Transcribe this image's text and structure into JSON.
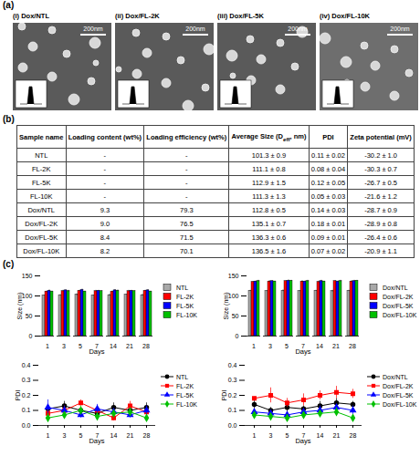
{
  "panel_a": {
    "label": "(a)",
    "images": [
      {
        "label": "(i) Dox/NTL",
        "scale_bar": "200nm"
      },
      {
        "label": "(ii) Dox/FL-2K",
        "scale_bar": "200nm"
      },
      {
        "label": "(iii) Dox/FL-5K",
        "scale_bar": "200nm"
      },
      {
        "label": "(iv) Dox/FL-10K",
        "scale_bar": "200nm"
      }
    ]
  },
  "panel_b": {
    "label": "(b)",
    "table": {
      "header": [
        "Sample name",
        "Loading content (wt%)",
        "Loading efficiency (wt%)",
        {
          "text": "Average Size (D",
          "subscript": "eff",
          "tail": ", nm)"
        },
        "PDI",
        "Zeta potential (mV)"
      ],
      "rows": [
        [
          "NTL",
          "-",
          "-",
          "101.3 ± 0.9",
          "0.11 ± 0.02",
          "-30.2 ± 1.0"
        ],
        [
          "FL-2K",
          "-",
          "-",
          "111.1 ± 0.8",
          "0.08 ± 0.04",
          "-30.3 ± 0.7"
        ],
        [
          "FL-5K",
          "-",
          "-",
          "112.9 ± 1.5",
          "0.12 ± 0.05",
          "-26.7 ± 0.5"
        ],
        [
          "FL-10K",
          "-",
          "-",
          "111.3 ± 1.3",
          "0.05 ± 0.03",
          "-21.6 ± 1.2"
        ],
        [
          "Dox/NTL",
          "9.3",
          "79.3",
          "112.8 ± 0.5",
          "0.14 ± 0.03",
          "-28.7 ± 0.9"
        ],
        [
          "Dox/FL-2K",
          "9.0",
          "76.5",
          "135.1 ± 0.7",
          "0.18 ± 0.01",
          "-28.9 ± 0.8"
        ],
        [
          "Dox/FL-5K",
          "8.4",
          "71.5",
          "136.3 ± 0.6",
          "0.09 ± 0.01",
          "-26.4 ± 0.6"
        ],
        [
          "Dox/FL-10K",
          "8.2",
          "70.1",
          "136.5 ± 1.6",
          "0.07 ± 0.02",
          "-20.9 ± 1.1"
        ]
      ]
    }
  },
  "panel_c": {
    "label": "(c)"
  },
  "chart_data": [
    {
      "type": "bar",
      "xlabel": "Days",
      "ylabel": "Size (nm)",
      "categories": [
        "1",
        "3",
        "5",
        "7",
        "14",
        "21",
        "28"
      ],
      "series": [
        {
          "name": "NTL",
          "color": "#a9a9a9",
          "values": [
            101,
            102,
            103,
            101,
            102,
            103,
            102
          ],
          "errors": [
            1,
            1,
            2,
            1,
            2,
            1,
            2
          ]
        },
        {
          "name": "FL-2K",
          "color": "#ff0000",
          "values": [
            111,
            112,
            113,
            112,
            111,
            112,
            113
          ],
          "errors": [
            1,
            2,
            1,
            2,
            1,
            2,
            1
          ]
        },
        {
          "name": "FL-5K",
          "color": "#0000ff",
          "values": [
            113,
            114,
            115,
            113,
            114,
            113,
            114
          ],
          "errors": [
            2,
            1,
            2,
            1,
            2,
            1,
            2
          ]
        },
        {
          "name": "FL-10K",
          "color": "#00c000",
          "values": [
            111,
            112,
            111,
            112,
            113,
            112,
            111
          ],
          "errors": [
            1,
            2,
            1,
            1,
            2,
            1,
            1
          ]
        }
      ],
      "ylim": [
        0,
        150
      ],
      "yticks": [
        0,
        50,
        100,
        150
      ],
      "legend": "right",
      "grid": false
    },
    {
      "type": "bar",
      "xlabel": "Days",
      "ylabel": "Size (nm)",
      "categories": [
        "1",
        "3",
        "5",
        "7",
        "14",
        "21",
        "28"
      ],
      "series": [
        {
          "name": "Dox/NTL",
          "color": "#a9a9a9",
          "values": [
            113,
            112,
            113,
            112,
            113,
            112,
            113
          ],
          "errors": [
            1,
            1,
            2,
            1,
            1,
            2,
            1
          ]
        },
        {
          "name": "Dox/FL-2K",
          "color": "#ff0000",
          "values": [
            135,
            136,
            137,
            136,
            135,
            137,
            136
          ],
          "errors": [
            1,
            2,
            1,
            2,
            2,
            1,
            2
          ]
        },
        {
          "name": "Dox/FL-5K",
          "color": "#0000ff",
          "values": [
            136,
            137,
            138,
            136,
            137,
            136,
            137
          ],
          "errors": [
            1,
            1,
            2,
            1,
            2,
            1,
            2
          ]
        },
        {
          "name": "Dox/FL-10K",
          "color": "#00c000",
          "values": [
            137,
            136,
            138,
            137,
            136,
            137,
            138
          ],
          "errors": [
            2,
            1,
            1,
            2,
            1,
            2,
            1
          ]
        }
      ],
      "ylim": [
        0,
        150
      ],
      "yticks": [
        0,
        50,
        100,
        150
      ],
      "legend": "right",
      "grid": false
    },
    {
      "type": "line",
      "xlabel": "Days",
      "ylabel": "PDI",
      "categories": [
        "1",
        "3",
        "5",
        "7",
        "14",
        "21",
        "28"
      ],
      "series": [
        {
          "name": "NTL",
          "color": "#000000",
          "marker": "circle",
          "line_style": "solid",
          "values": [
            0.11,
            0.13,
            0.1,
            0.08,
            0.12,
            0.1,
            0.12
          ],
          "errors": [
            0.02,
            0.03,
            0.02,
            0.02,
            0.03,
            0.02,
            0.03
          ]
        },
        {
          "name": "FL-2K",
          "color": "#ff0000",
          "marker": "square",
          "line_style": "solid",
          "values": [
            0.08,
            0.1,
            0.15,
            0.1,
            0.05,
            0.13,
            0.09
          ],
          "errors": [
            0.04,
            0.03,
            0.02,
            0.03,
            0.02,
            0.03,
            0.02
          ]
        },
        {
          "name": "FL-5K",
          "color": "#0000ff",
          "marker": "triangle",
          "line_style": "solid",
          "values": [
            0.12,
            0.1,
            0.07,
            0.11,
            0.09,
            0.07,
            0.1
          ],
          "errors": [
            0.05,
            0.03,
            0.02,
            0.03,
            0.02,
            0.02,
            0.03
          ]
        },
        {
          "name": "FL-10K",
          "color": "#00c000",
          "marker": "diamond",
          "line_style": "solid",
          "values": [
            0.05,
            0.07,
            0.1,
            0.06,
            0.08,
            0.09,
            0.05
          ],
          "errors": [
            0.03,
            0.02,
            0.03,
            0.02,
            0.02,
            0.03,
            0.02
          ]
        }
      ],
      "ylim": [
        0,
        0.4
      ],
      "yticks": [
        {
          "value": 0,
          "label": "0.0"
        },
        0.1,
        0.2,
        0.3,
        0.4
      ],
      "legend": "right",
      "grid": false
    },
    {
      "type": "line",
      "xlabel": "Days",
      "ylabel": "PDI",
      "categories": [
        "1",
        "3",
        "5",
        "7",
        "14",
        "21",
        "28"
      ],
      "series": [
        {
          "name": "Dox/NTL",
          "color": "#000000",
          "marker": "circle",
          "line_style": "solid",
          "values": [
            0.14,
            0.1,
            0.12,
            0.11,
            0.13,
            0.15,
            0.14
          ],
          "errors": [
            0.03,
            0.02,
            0.03,
            0.02,
            0.03,
            0.03,
            0.02
          ]
        },
        {
          "name": "Dox/FL-2K",
          "color": "#ff0000",
          "marker": "square",
          "line_style": "solid",
          "values": [
            0.18,
            0.2,
            0.15,
            0.17,
            0.2,
            0.22,
            0.21
          ],
          "errors": [
            0.01,
            0.05,
            0.03,
            0.04,
            0.03,
            0.04,
            0.03
          ]
        },
        {
          "name": "Dox/FL-5K",
          "color": "#0000ff",
          "marker": "triangle",
          "line_style": "solid",
          "values": [
            0.09,
            0.08,
            0.07,
            0.09,
            0.1,
            0.12,
            0.1
          ],
          "errors": [
            0.01,
            0.02,
            0.02,
            0.02,
            0.03,
            0.02,
            0.03
          ]
        },
        {
          "name": "Dox/FL-10K",
          "color": "#00c000",
          "marker": "diamond",
          "line_style": "solid",
          "values": [
            0.07,
            0.06,
            0.05,
            0.07,
            0.08,
            0.09,
            0.05
          ],
          "errors": [
            0.02,
            0.02,
            0.02,
            0.02,
            0.02,
            0.03,
            0.02
          ]
        }
      ],
      "ylim": [
        0,
        0.4
      ],
      "yticks": [
        {
          "value": 0,
          "label": "0.0"
        },
        0.1,
        0.2,
        0.3,
        0.4
      ],
      "legend": "right",
      "grid": false
    }
  ]
}
